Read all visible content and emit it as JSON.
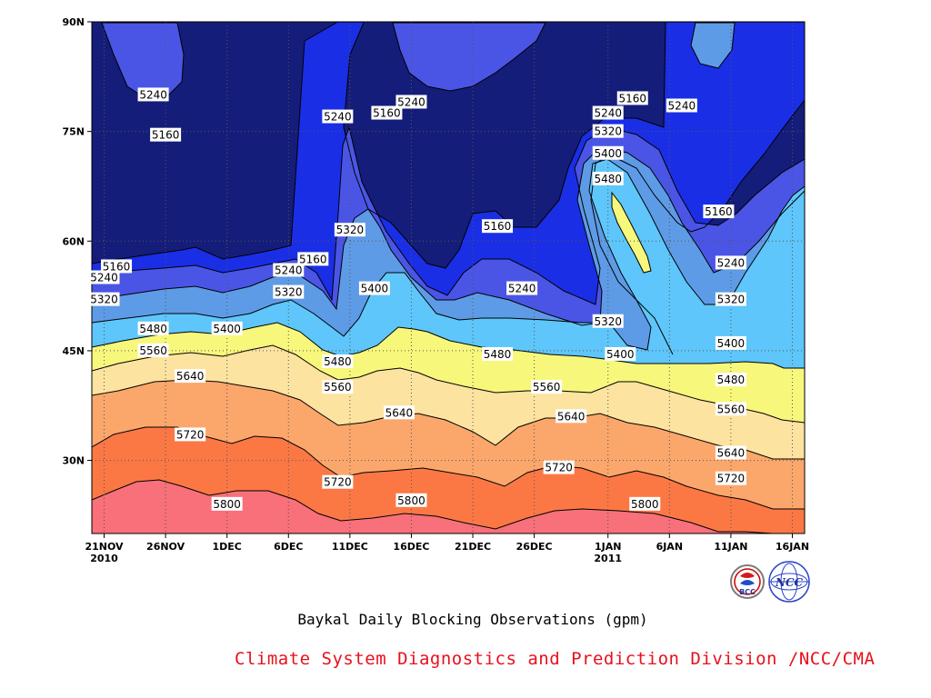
{
  "chart_data": {
    "type": "contour",
    "title": "Baykal Daily Blocking Observations (gpm)",
    "credit": "Climate System Diagnostics and Prediction Division /NCC/CMA",
    "x_ticks": [
      {
        "date": "2010-11-21",
        "label": "21NOV",
        "sub": "2010"
      },
      {
        "date": "2010-11-26",
        "label": "26NOV",
        "sub": ""
      },
      {
        "date": "2010-12-01",
        "label": "1DEC",
        "sub": ""
      },
      {
        "date": "2010-12-06",
        "label": "6DEC",
        "sub": ""
      },
      {
        "date": "2010-12-11",
        "label": "11DEC",
        "sub": ""
      },
      {
        "date": "2010-12-16",
        "label": "16DEC",
        "sub": ""
      },
      {
        "date": "2010-12-21",
        "label": "21DEC",
        "sub": ""
      },
      {
        "date": "2010-12-26",
        "label": "26DEC",
        "sub": ""
      },
      {
        "date": "2011-01-01",
        "label": "1JAN",
        "sub": "2011"
      },
      {
        "date": "2011-01-06",
        "label": "6JAN",
        "sub": ""
      },
      {
        "date": "2011-01-11",
        "label": "11JAN",
        "sub": ""
      },
      {
        "date": "2011-01-16",
        "label": "16JAN",
        "sub": ""
      }
    ],
    "y_ticks": [
      {
        "lat": 30,
        "label": "30N"
      },
      {
        "lat": 45,
        "label": "45N"
      },
      {
        "lat": 60,
        "label": "60N"
      },
      {
        "lat": 75,
        "label": "75N"
      },
      {
        "lat": 90,
        "label": "90N"
      }
    ],
    "xlim": [
      "2010-11-20",
      "2011-01-17"
    ],
    "ylim": [
      20,
      90
    ],
    "grid": true,
    "levels": [
      {
        "value": 5160,
        "color": "#151d7a"
      },
      {
        "value": 5240,
        "color": "#1a2ee6"
      },
      {
        "value": 5320,
        "color": "#4a55e6"
      },
      {
        "value": 5400,
        "color": "#5e9be6"
      },
      {
        "value": 5480,
        "color": "#5ec6fa"
      },
      {
        "value": 5560,
        "color": "#f7f77c"
      },
      {
        "value": 5640,
        "color": "#fde3a0"
      },
      {
        "value": 5720,
        "color": "#fba76c"
      },
      {
        "value": 5800,
        "color": "#fb7845"
      },
      {
        "value": 5880,
        "color": "#f7707a"
      }
    ],
    "contour_labels": [
      {
        "date": "2010-11-26",
        "lat": 74.5,
        "value": "5160"
      },
      {
        "date": "2010-11-25",
        "lat": 80,
        "value": "5240"
      },
      {
        "date": "2010-11-22",
        "lat": 56.5,
        "value": "5160"
      },
      {
        "date": "2010-11-21",
        "lat": 55,
        "value": "5240"
      },
      {
        "date": "2010-11-21",
        "lat": 52,
        "value": "5320"
      },
      {
        "date": "2010-11-25",
        "lat": 48,
        "value": "5480"
      },
      {
        "date": "2010-11-25",
        "lat": 45,
        "value": "5560"
      },
      {
        "date": "2010-11-28",
        "lat": 41.5,
        "value": "5640"
      },
      {
        "date": "2010-11-28",
        "lat": 33.5,
        "value": "5720"
      },
      {
        "date": "2010-12-01",
        "lat": 48,
        "value": "5400"
      },
      {
        "date": "2010-12-01",
        "lat": 24,
        "value": "5800"
      },
      {
        "date": "2010-12-06",
        "lat": 56,
        "value": "5240"
      },
      {
        "date": "2010-12-06",
        "lat": 53,
        "value": "5320"
      },
      {
        "date": "2010-12-08",
        "lat": 57.5,
        "value": "5160"
      },
      {
        "date": "2010-12-10",
        "lat": 77,
        "value": "5240"
      },
      {
        "date": "2010-12-14",
        "lat": 77.5,
        "value": "5160"
      },
      {
        "date": "2010-12-16",
        "lat": 79,
        "value": "5240"
      },
      {
        "date": "2010-12-11",
        "lat": 61.5,
        "value": "5320"
      },
      {
        "date": "2010-12-13",
        "lat": 53.5,
        "value": "5400"
      },
      {
        "date": "2010-12-10",
        "lat": 43.5,
        "value": "5480"
      },
      {
        "date": "2010-12-10",
        "lat": 40,
        "value": "5560"
      },
      {
        "date": "2010-12-15",
        "lat": 36.5,
        "value": "5640"
      },
      {
        "date": "2010-12-10",
        "lat": 27,
        "value": "5720"
      },
      {
        "date": "2010-12-16",
        "lat": 24.5,
        "value": "5800"
      },
      {
        "date": "2010-12-23",
        "lat": 62,
        "value": "5160"
      },
      {
        "date": "2010-12-25",
        "lat": 53.5,
        "value": "5240"
      },
      {
        "date": "2010-12-23",
        "lat": 44.5,
        "value": "5480"
      },
      {
        "date": "2010-12-27",
        "lat": 40,
        "value": "5560"
      },
      {
        "date": "2010-12-29",
        "lat": 36,
        "value": "5640"
      },
      {
        "date": "2010-12-28",
        "lat": 29,
        "value": "5720"
      },
      {
        "date": "2011-01-01",
        "lat": 49,
        "value": "5320"
      },
      {
        "date": "2011-01-02",
        "lat": 44.5,
        "value": "5400"
      },
      {
        "date": "2011-01-03",
        "lat": 79.5,
        "value": "5160"
      },
      {
        "date": "2011-01-01",
        "lat": 77.5,
        "value": "5240"
      },
      {
        "date": "2011-01-01",
        "lat": 75,
        "value": "5320"
      },
      {
        "date": "2011-01-01",
        "lat": 72,
        "value": "5400"
      },
      {
        "date": "2011-01-01",
        "lat": 68.5,
        "value": "5480"
      },
      {
        "date": "2011-01-04",
        "lat": 24,
        "value": "5800"
      },
      {
        "date": "2011-01-07",
        "lat": 78.5,
        "value": "5240"
      },
      {
        "date": "2011-01-10",
        "lat": 64,
        "value": "5160"
      },
      {
        "date": "2011-01-11",
        "lat": 57,
        "value": "5240"
      },
      {
        "date": "2011-01-11",
        "lat": 52,
        "value": "5320"
      },
      {
        "date": "2011-01-11",
        "lat": 46,
        "value": "5400"
      },
      {
        "date": "2011-01-11",
        "lat": 41,
        "value": "5480"
      },
      {
        "date": "2011-01-11",
        "lat": 37,
        "value": "5560"
      },
      {
        "date": "2011-01-11",
        "lat": 31,
        "value": "5640"
      },
      {
        "date": "2011-01-11",
        "lat": 27.5,
        "value": "5720"
      }
    ]
  },
  "logos": [
    {
      "name": "bcc-logo",
      "text": "BCC"
    },
    {
      "name": "ncc-logo",
      "text": "NCC"
    }
  ]
}
